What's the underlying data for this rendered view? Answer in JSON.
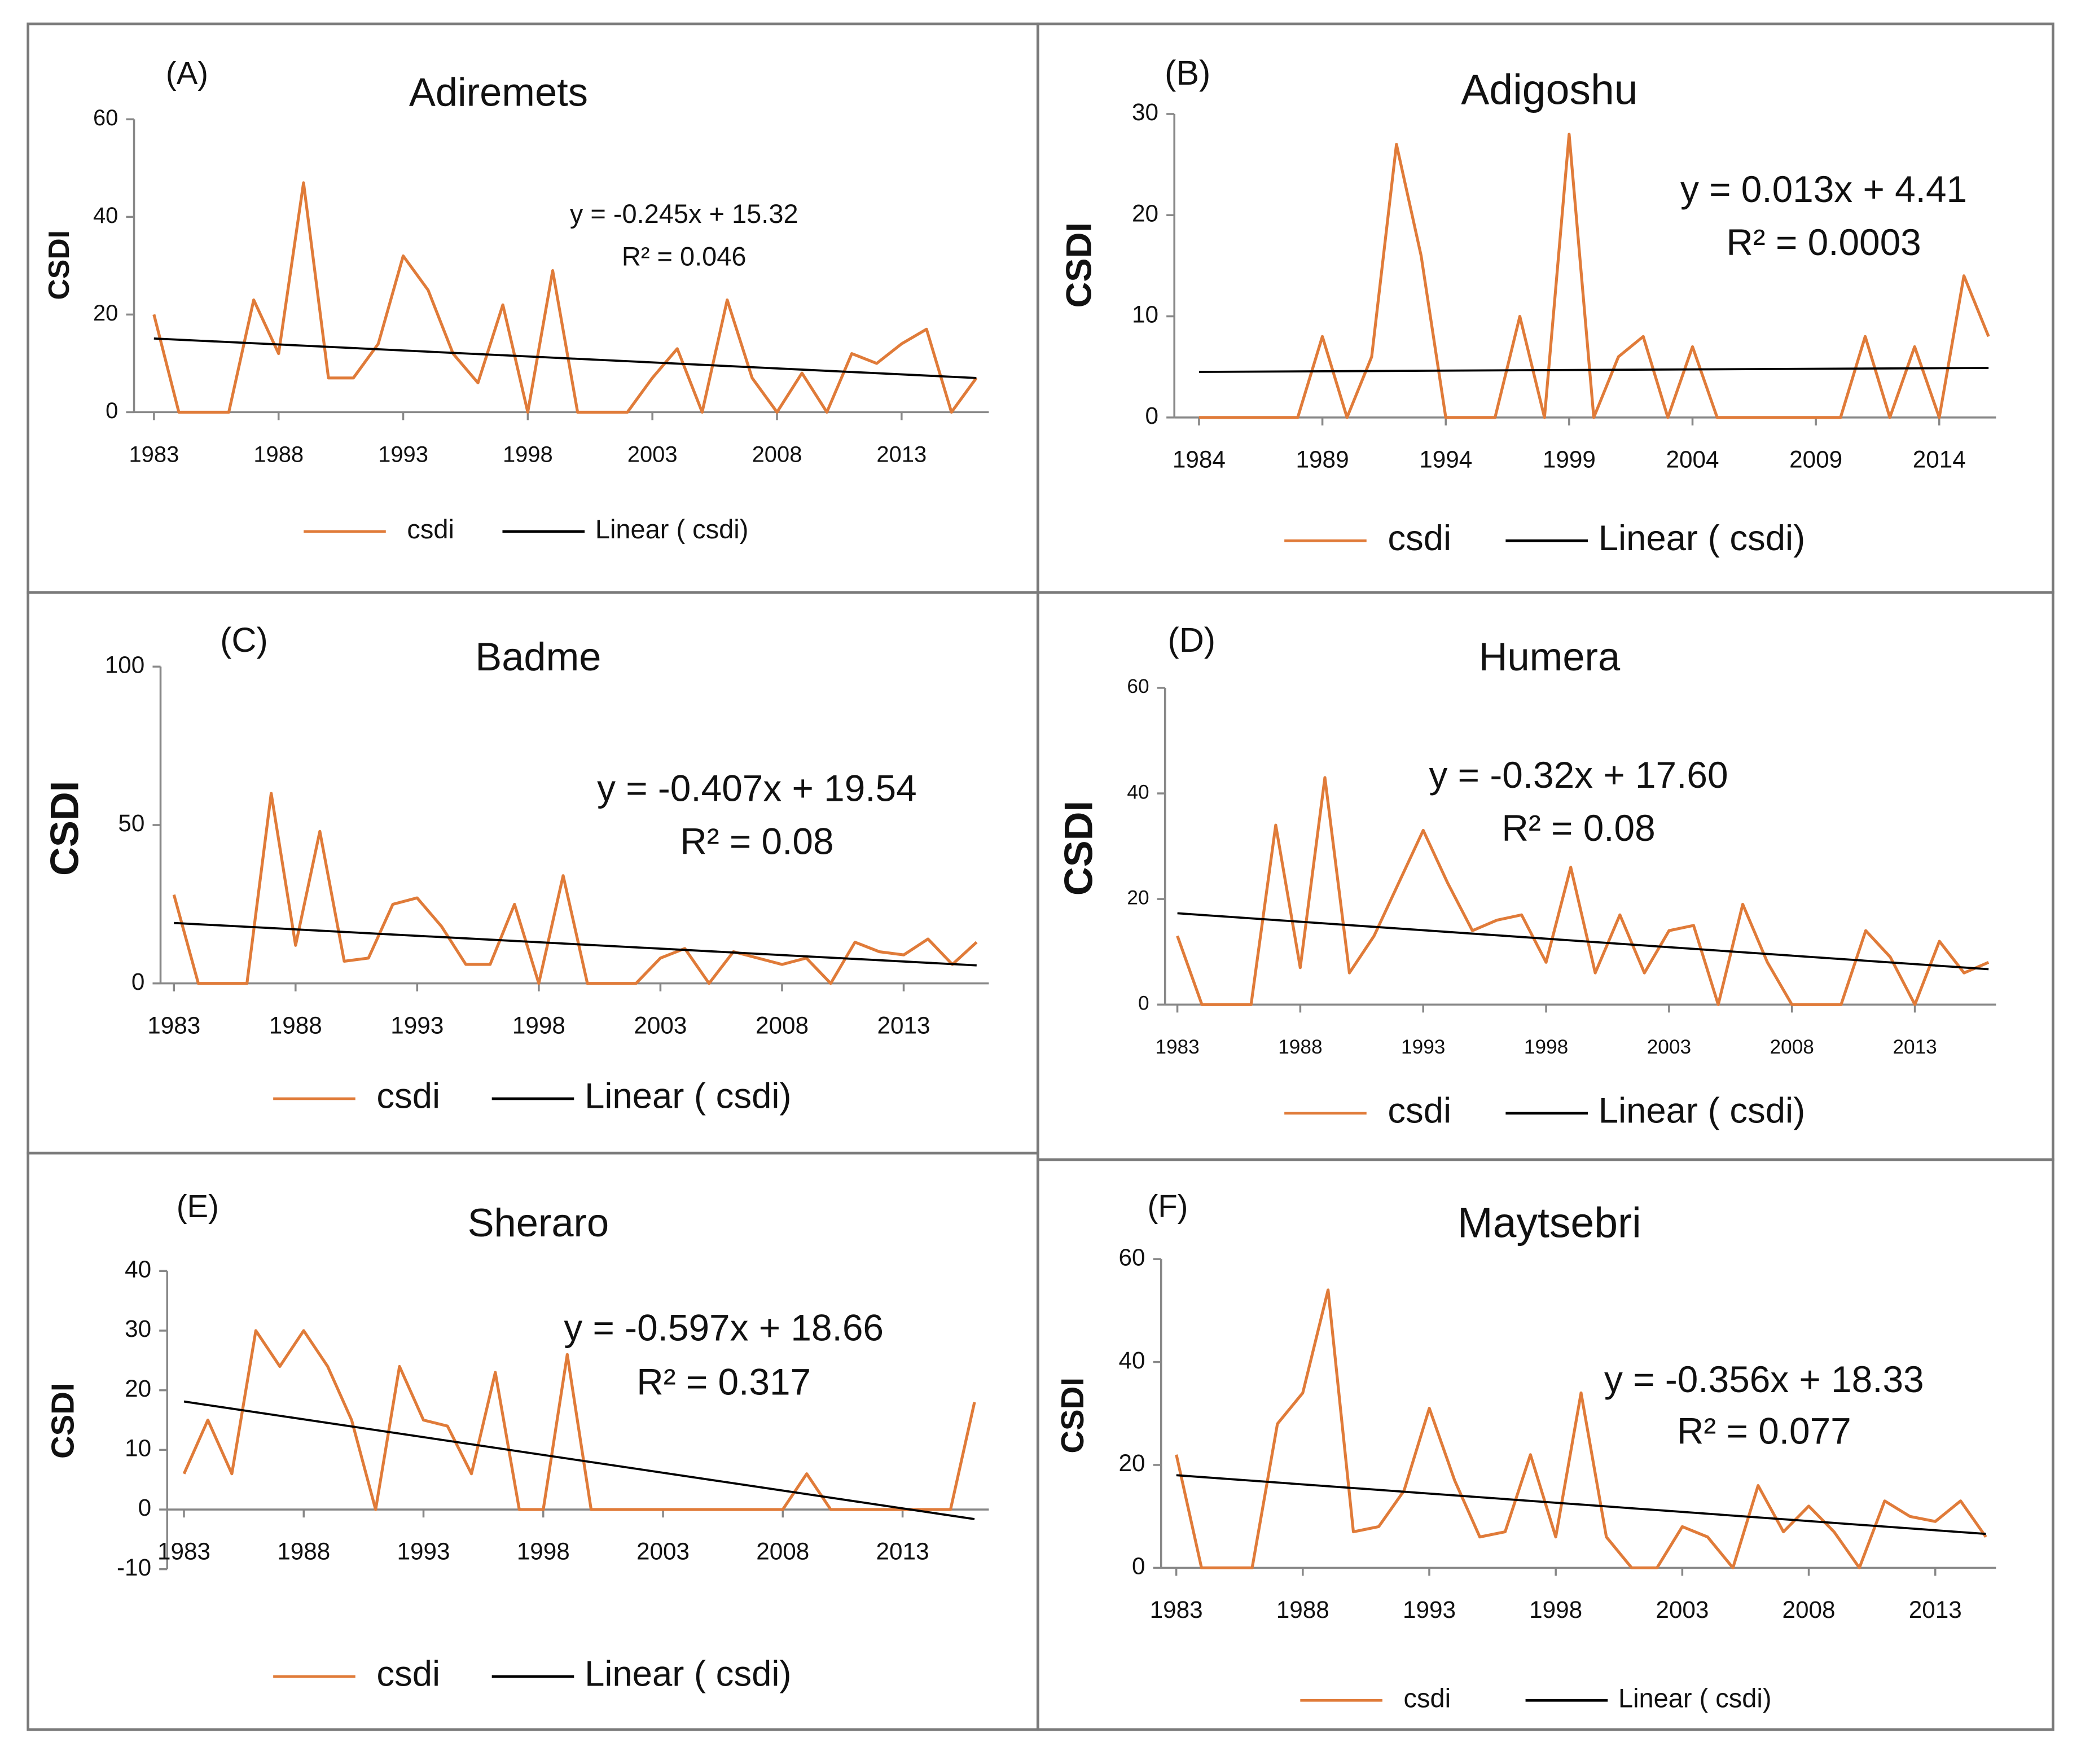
{
  "chart_data": [
    {
      "type": "line",
      "label": "(A)",
      "title": "Adiremets",
      "y_label": "CSDI",
      "equation": "y = -0.245x + 15.32",
      "r_squared": "R² = 0.046",
      "x": [
        1983,
        1984,
        1985,
        1986,
        1987,
        1988,
        1989,
        1990,
        1991,
        1992,
        1993,
        1994,
        1995,
        1996,
        1997,
        1998,
        1999,
        2000,
        2001,
        2002,
        2003,
        2004,
        2005,
        2006,
        2007,
        2008,
        2009,
        2010,
        2011,
        2012,
        2013,
        2014,
        2015,
        2016
      ],
      "xlim": [
        1982.2,
        2016.5
      ],
      "xticks": [
        1983,
        1988,
        1993,
        1998,
        2003,
        2008,
        2013
      ],
      "ylim": [
        0,
        60
      ],
      "yticks": [
        0,
        20,
        40,
        60
      ],
      "series": [
        {
          "name": "csdi",
          "color": "#e07b39",
          "values": [
            20,
            0,
            0,
            0,
            23,
            12,
            47,
            7,
            7,
            14,
            32,
            25,
            12,
            6,
            22,
            0,
            29,
            0,
            0,
            0,
            7,
            13,
            0,
            23,
            7,
            0,
            8,
            0,
            12,
            10,
            14,
            17,
            0,
            7
          ]
        },
        {
          "name": "Linear ( csdi)",
          "color": "#000000",
          "x": [
            1983,
            2016
          ],
          "values": [
            15.1,
            7.0
          ]
        }
      ]
    },
    {
      "type": "line",
      "label": "(B)",
      "title": "Adigoshu",
      "y_label": "CSDI",
      "equation": "y = 0.013x + 4.41",
      "r_squared": "R² = 0.0003",
      "x": [
        1984,
        1985,
        1986,
        1987,
        1988,
        1989,
        1990,
        1991,
        1992,
        1993,
        1994,
        1995,
        1996,
        1997,
        1998,
        1999,
        2000,
        2001,
        2002,
        2003,
        2004,
        2005,
        2006,
        2007,
        2008,
        2009,
        2010,
        2011,
        2012,
        2013,
        2014,
        2015,
        2016
      ],
      "xlim": [
        1983,
        2016.3
      ],
      "xticks": [
        1984,
        1989,
        1994,
        1999,
        2004,
        2009,
        2014
      ],
      "ylim": [
        0,
        30
      ],
      "yticks": [
        0,
        10,
        20,
        30
      ],
      "series": [
        {
          "name": "csdi",
          "color": "#e07b39",
          "values": [
            0,
            0,
            0,
            0,
            0,
            8,
            0,
            6,
            27,
            16,
            0,
            0,
            0,
            10,
            0,
            28,
            0,
            6,
            8,
            0,
            7,
            0,
            0,
            0,
            0,
            0,
            0,
            8,
            0,
            7,
            0,
            14,
            8
          ]
        },
        {
          "name": "Linear ( csdi)",
          "color": "#000000",
          "x": [
            1984,
            2016
          ],
          "values": [
            4.5,
            4.9
          ]
        }
      ]
    },
    {
      "type": "line",
      "label": "(C)",
      "title": "Badme",
      "y_label": "CSDI",
      "equation": "y = -0.407x + 19.54",
      "r_squared": "R² = 0.08",
      "x": [
        1983,
        1984,
        1985,
        1986,
        1987,
        1988,
        1989,
        1990,
        1991,
        1992,
        1993,
        1994,
        1995,
        1996,
        1997,
        1998,
        1999,
        2000,
        2001,
        2002,
        2003,
        2004,
        2005,
        2006,
        2007,
        2008,
        2009,
        2010,
        2011,
        2012,
        2013,
        2014,
        2015,
        2016
      ],
      "xlim": [
        1982.45,
        2016.5
      ],
      "xticks": [
        1983,
        1988,
        1993,
        1998,
        2003,
        2008,
        2013
      ],
      "ylim": [
        0,
        100
      ],
      "yticks": [
        0,
        50,
        100
      ],
      "series": [
        {
          "name": "csdi",
          "color": "#e07b39",
          "values": [
            28,
            0,
            0,
            0,
            60,
            12,
            48,
            7,
            8,
            25,
            27,
            18,
            6,
            6,
            25,
            0,
            34,
            0,
            0,
            0,
            8,
            11,
            0,
            10,
            8,
            6,
            8,
            0,
            13,
            10,
            9,
            14,
            6,
            13
          ]
        },
        {
          "name": "Linear ( csdi)",
          "color": "#000000",
          "x": [
            1983,
            2016
          ],
          "values": [
            19.1,
            5.7
          ]
        }
      ]
    },
    {
      "type": "line",
      "label": "(D)",
      "title": "Humera",
      "y_label": "CSDI",
      "equation": "y = -0.32x + 17.60",
      "r_squared": "R² = 0.08",
      "x": [
        1983,
        1984,
        1985,
        1986,
        1987,
        1988,
        1989,
        1990,
        1991,
        1992,
        1993,
        1994,
        1995,
        1996,
        1997,
        1998,
        1999,
        2000,
        2001,
        2002,
        2003,
        2004,
        2005,
        2006,
        2007,
        2008,
        2009,
        2010,
        2011,
        2012,
        2013,
        2014,
        2015,
        2016
      ],
      "xlim": [
        1982.5,
        2016.3
      ],
      "xticks": [
        1983,
        1988,
        1993,
        1998,
        2003,
        2008,
        2013
      ],
      "ylim": [
        0,
        60
      ],
      "yticks": [
        0,
        20,
        40,
        60
      ],
      "series": [
        {
          "name": "csdi",
          "color": "#e07b39",
          "values": [
            13,
            0,
            0,
            0,
            34,
            7,
            43,
            6,
            13,
            23,
            33,
            23,
            14,
            16,
            17,
            8,
            26,
            6,
            17,
            6,
            14,
            15,
            0,
            19,
            8,
            0,
            0,
            0,
            14,
            9,
            0,
            12,
            6,
            8
          ]
        },
        {
          "name": "Linear ( csdi)",
          "color": "#000000",
          "x": [
            1983,
            2016
          ],
          "values": [
            17.3,
            6.7
          ]
        }
      ]
    },
    {
      "type": "line",
      "label": "(E)",
      "title": "Sheraro",
      "y_label": "CSDI",
      "equation": "y = -0.597x + 18.66",
      "r_squared": "R² = 0.317",
      "x": [
        1983,
        1984,
        1985,
        1986,
        1987,
        1988,
        1989,
        1990,
        1991,
        1992,
        1993,
        1994,
        1995,
        1996,
        1997,
        1998,
        1999,
        2000,
        2001,
        2002,
        2003,
        2004,
        2005,
        2006,
        2007,
        2008,
        2009,
        2010,
        2011,
        2012,
        2013,
        2014,
        2015,
        2016
      ],
      "xlim": [
        1982.3,
        2016.6
      ],
      "xticks": [
        1983,
        1988,
        1993,
        1998,
        2003,
        2008,
        2013
      ],
      "ylim": [
        -10,
        40
      ],
      "yticks": [
        -10,
        0,
        10,
        20,
        30,
        40
      ],
      "series": [
        {
          "name": "csdi",
          "color": "#e07b39",
          "values": [
            6,
            15,
            6,
            30,
            24,
            30,
            24,
            15,
            0,
            24,
            15,
            14,
            6,
            23,
            0,
            0,
            26,
            0,
            0,
            0,
            0,
            0,
            0,
            0,
            0,
            0,
            6,
            0,
            0,
            0,
            0,
            0,
            0,
            18
          ]
        },
        {
          "name": "Linear ( csdi)",
          "color": "#000000",
          "x": [
            1983,
            2016
          ],
          "values": [
            18.1,
            -1.6
          ]
        }
      ]
    },
    {
      "type": "line",
      "label": "(F)",
      "title": "Maytsebri",
      "y_label": "CSDI",
      "equation": "y = -0.356x + 18.33",
      "r_squared": "R² = 0.077",
      "x": [
        1983,
        1984,
        1985,
        1986,
        1987,
        1988,
        1989,
        1990,
        1991,
        1992,
        1993,
        1994,
        1995,
        1996,
        1997,
        1998,
        1999,
        2000,
        2001,
        2002,
        2003,
        2004,
        2005,
        2006,
        2007,
        2008,
        2009,
        2010,
        2011,
        2012,
        2013,
        2014,
        2015
      ],
      "xlim": [
        1982.4,
        2015.4
      ],
      "xticks": [
        1983,
        1988,
        1993,
        1998,
        2003,
        2008,
        2013
      ],
      "ylim": [
        0,
        60
      ],
      "yticks": [
        0,
        20,
        40,
        60
      ],
      "series": [
        {
          "name": "csdi",
          "color": "#e07b39",
          "values": [
            22,
            0,
            0,
            0,
            28,
            34,
            54,
            7,
            8,
            15,
            31,
            17,
            6,
            7,
            22,
            6,
            34,
            6,
            0,
            0,
            8,
            6,
            0,
            16,
            7,
            12,
            7,
            0,
            13,
            10,
            9,
            13,
            6
          ]
        },
        {
          "name": "Linear ( csdi)",
          "color": "#000000",
          "x": [
            1983,
            2015
          ],
          "values": [
            18.0,
            6.6
          ]
        }
      ]
    }
  ]
}
